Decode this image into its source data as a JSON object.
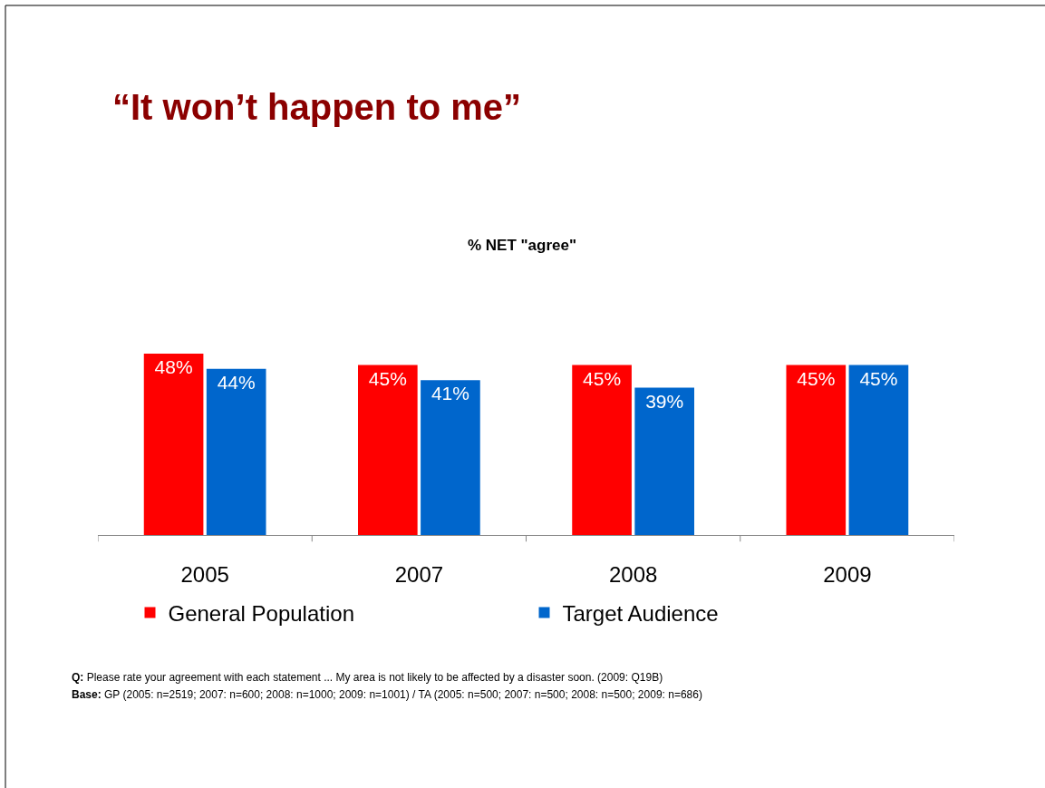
{
  "chart_data": {
    "type": "bar",
    "title": "“It won’t happen to me”",
    "subtitle": "% NET \"agree\"",
    "categories": [
      "2005",
      "2007",
      "2008",
      "2009"
    ],
    "series": [
      {
        "name": "General Population",
        "color": "#ff0000",
        "values": [
          48,
          45,
          45,
          45
        ],
        "value_labels": [
          "48%",
          "45%",
          "45%",
          "45%"
        ]
      },
      {
        "name": "Target Audience",
        "color": "#0066cc",
        "values": [
          44,
          41,
          39,
          45
        ],
        "value_labels": [
          "44%",
          "41%",
          "39%",
          "45%"
        ]
      }
    ],
    "legend": "bottom",
    "annotations": [
      "Q: Please rate your agreement with each statement ... My area is not likely to be affected by a disaster soon. (2009: Q19B)",
      "Base: GP (2005: n=2519; 2007: n=600; 2008: n=1000; 2009: n=1001) / TA (2005: n=500; 2007: n=500; 2008: n=500; 2009: n=686)"
    ]
  }
}
